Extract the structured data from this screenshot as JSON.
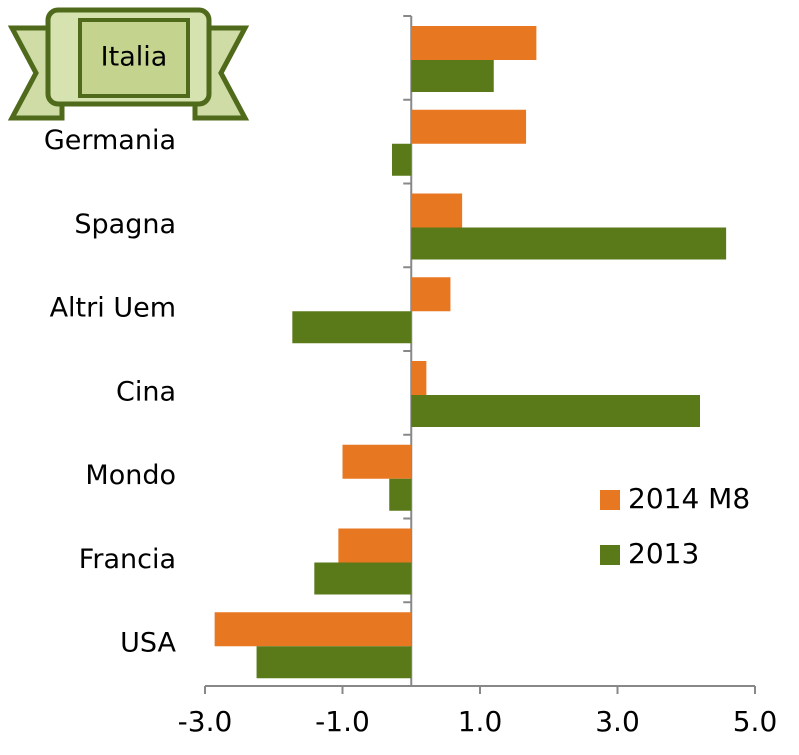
{
  "chart_data": {
    "type": "bar",
    "orientation": "horizontal",
    "categories": [
      "Italia",
      "Germania",
      "Spagna",
      "Altri Uem",
      "Cina",
      "Mondo",
      "Francia",
      "USA"
    ],
    "series": [
      {
        "name": "2014 M8",
        "color": "#e87722",
        "values": [
          1.82,
          1.67,
          0.74,
          0.57,
          0.22,
          -1.0,
          -1.06,
          -2.86
        ]
      },
      {
        "name": "2013",
        "color": "#5a7a1a",
        "values": [
          1.2,
          -0.28,
          4.58,
          -1.73,
          4.2,
          -0.32,
          -1.41,
          -2.25
        ]
      }
    ],
    "xlim": [
      -3.0,
      5.0
    ],
    "xticks": [
      {
        "value": -3.0,
        "label": "-3.0"
      },
      {
        "value": -1.0,
        "label": "-1.0"
      },
      {
        "value": 1.0,
        "label": "1.0"
      },
      {
        "value": 3.0,
        "label": "3.0"
      },
      {
        "value": 5.0,
        "label": "5.0"
      }
    ],
    "legend": "lower right"
  }
}
